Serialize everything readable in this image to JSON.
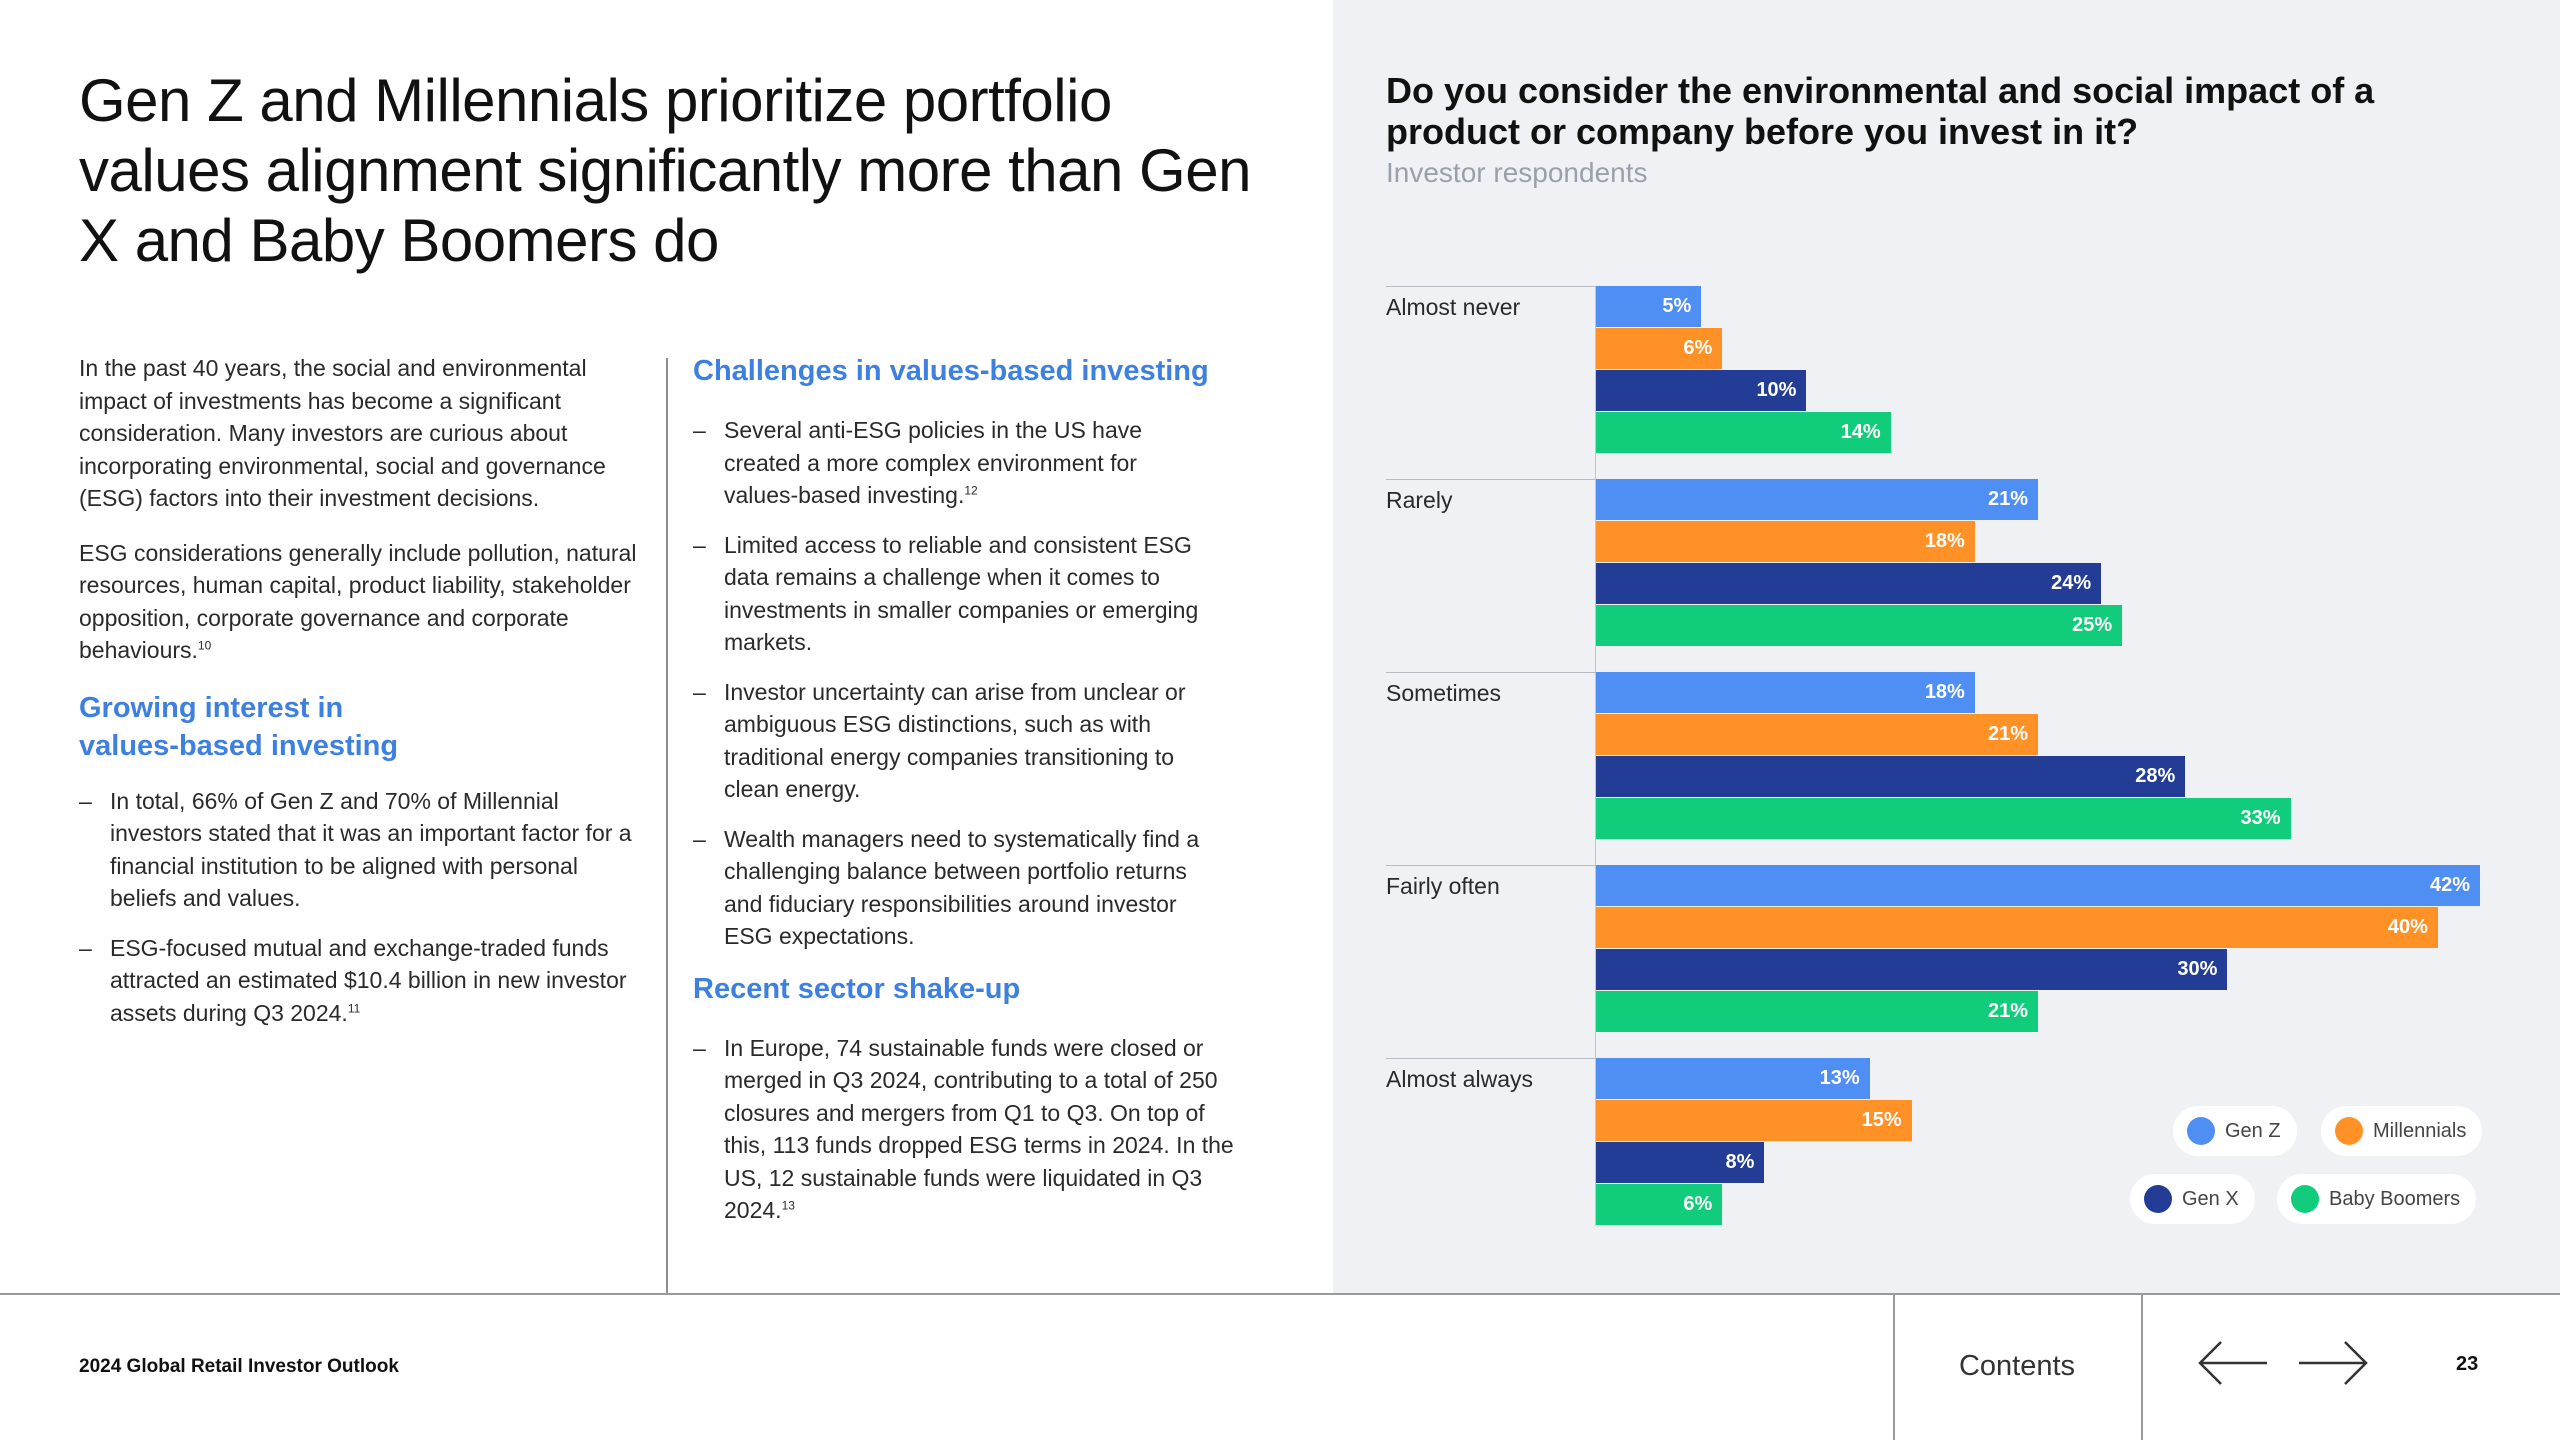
{
  "title": "Gen Z and Millennials prioritize portfolio values alignment significantly more than Gen X and Baby Boomers do",
  "left_column": {
    "para1": "In the past 40 years, the social and environmental impact of investments has become a significant consideration. Many investors are curious about incorporating environmental, social and governance (ESG) factors into their investment decisions.",
    "para2": "ESG considerations generally include pollution, natural resources, human capital, product liability, stakeholder opposition, corporate governance and corporate behaviours.",
    "para2_ref": "10",
    "growing_heading": "Growing interest in values-based investing",
    "bullets": [
      {
        "text": "In total, 66% of Gen Z and 70% of Millennial investors stated that it was an important factor for a financial institution to be aligned with personal beliefs and values.",
        "ref": ""
      },
      {
        "text": "ESG-focused mutual and exchange-traded funds attracted an estimated $10.4 billion in new investor assets during Q3 2024.",
        "ref": "11"
      }
    ]
  },
  "middle_column": {
    "challenges_heading": "Challenges in values-based investing",
    "challenges_bullets": [
      {
        "text": "Several anti-ESG policies in the US have created a more complex environment for values-based investing.",
        "ref": "12"
      },
      {
        "text": "Limited access to reliable and consistent ESG data remains a challenge when it comes to investments in smaller companies or emerging markets.",
        "ref": ""
      },
      {
        "text": "Investor uncertainty can arise from unclear or ambiguous ESG distinctions, such as with traditional energy companies transitioning to clean energy.",
        "ref": ""
      },
      {
        "text": "Wealth managers need to systematically find a challenging balance between portfolio returns and fiduciary responsibilities around investor ESG expectations.",
        "ref": ""
      }
    ],
    "shakeup_heading": "Recent sector shake-up",
    "shakeup_bullets": [
      {
        "text": "In Europe, 74 sustainable funds were closed or merged in Q3 2024, contributing to a total of 250 closures and mergers from Q1 to Q3. On top of this, 113 funds dropped ESG terms in 2024. In the US, 12 sustainable funds were liquidated in Q3 2024.",
        "ref": "13"
      }
    ]
  },
  "chart_data": {
    "type": "bar",
    "orientation": "horizontal",
    "title": "Do you consider the environmental and social impact of a product or company before you invest in it?",
    "subtitle": "Investor respondents",
    "categories": [
      "Almost never",
      "Rarely",
      "Sometimes",
      "Fairly often",
      "Almost always"
    ],
    "series": [
      {
        "name": "Gen Z",
        "color": "#4f8ef2",
        "values": [
          5,
          21,
          18,
          42,
          13
        ]
      },
      {
        "name": "Millennials",
        "color": "#ff9126",
        "values": [
          6,
          18,
          21,
          40,
          15
        ]
      },
      {
        "name": "Gen X",
        "color": "#233d96",
        "values": [
          10,
          24,
          28,
          30,
          8
        ]
      },
      {
        "name": "Baby Boomers",
        "color": "#11cc7a",
        "values": [
          14,
          25,
          33,
          21,
          6
        ]
      }
    ],
    "unit": "%",
    "xlim": [
      0,
      42
    ],
    "legend_position": "bottom-right"
  },
  "footer": {
    "report_title": "2024 Global Retail Investor Outlook",
    "contents_label": "Contents",
    "page_number": "23"
  },
  "icons": {
    "prev": "arrow-left-icon",
    "next": "arrow-right-icon"
  }
}
